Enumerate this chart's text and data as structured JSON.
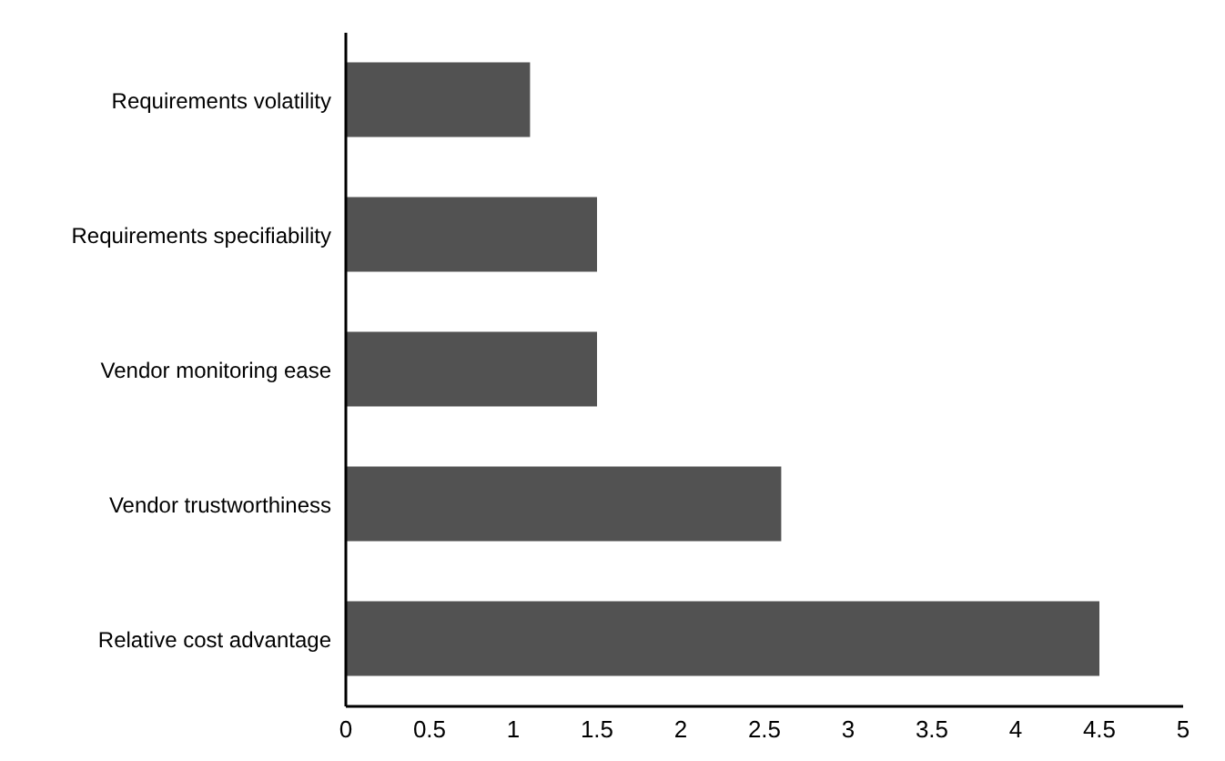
{
  "chart_data": {
    "type": "bar",
    "orientation": "horizontal",
    "categories": [
      "Requirements volatility",
      "Requirements specifiability",
      "Vendor monitoring ease",
      "Vendor trustworthiness",
      "Relative cost advantage"
    ],
    "values": [
      1.1,
      1.5,
      1.5,
      2.6,
      4.5
    ],
    "color": "#525252",
    "xlim": [
      0,
      5
    ],
    "xticks": [
      0,
      0.5,
      1,
      1.5,
      2,
      2.5,
      3,
      3.5,
      4,
      4.5,
      5
    ],
    "grid": false
  }
}
